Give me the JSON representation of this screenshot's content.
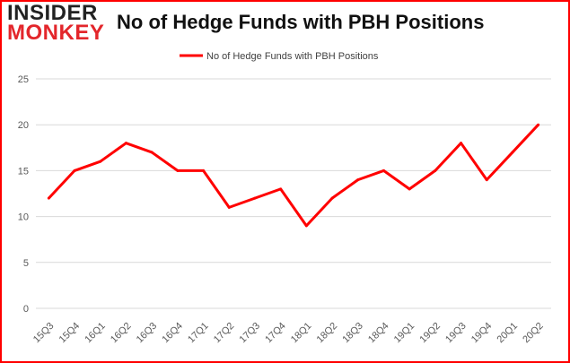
{
  "logo": {
    "line1": "INSIDER",
    "line2": "MONKEY"
  },
  "chart_data": {
    "type": "line",
    "title": "No of Hedge Funds with PBH Positions",
    "xlabel": "",
    "ylabel": "",
    "categories": [
      "15Q3",
      "15Q4",
      "16Q1",
      "16Q2",
      "16Q3",
      "16Q4",
      "17Q1",
      "17Q2",
      "17Q3",
      "17Q4",
      "18Q1",
      "18Q2",
      "18Q3",
      "18Q4",
      "19Q1",
      "19Q2",
      "19Q3",
      "19Q4",
      "20Q1",
      "20Q2"
    ],
    "series": [
      {
        "name": "No of Hedge Funds with PBH Positions",
        "values": [
          12,
          15,
          16,
          18,
          17,
          15,
          15,
          11,
          12,
          13,
          9,
          12,
          14,
          15,
          13,
          15,
          18,
          14,
          17,
          20
        ]
      }
    ],
    "ylim": [
      0,
      25
    ],
    "yticks": [
      0,
      5,
      10,
      15,
      20,
      25
    ],
    "grid": true,
    "legend": "top-center",
    "colors": {
      "line": "#ff0000",
      "grid": "#d9d9d9",
      "axis_text": "#595959",
      "brand_red": "#e3262b",
      "frame": "#ff0000"
    }
  }
}
